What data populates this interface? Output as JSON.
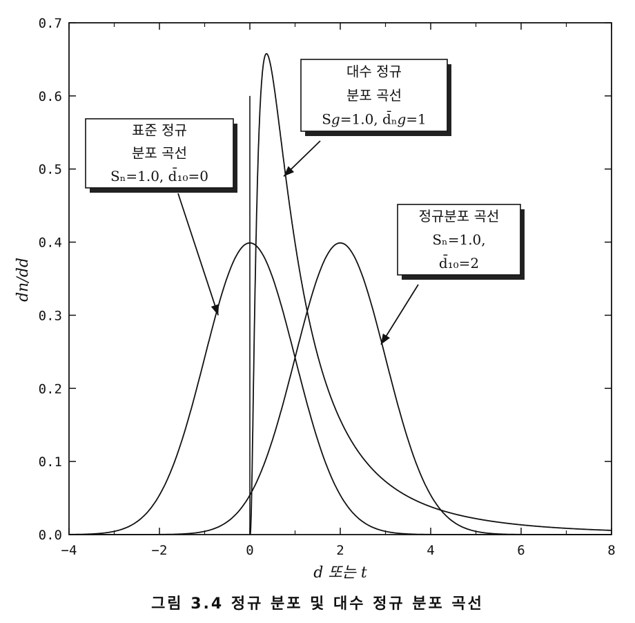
{
  "chart_data": {
    "type": "line",
    "xlabel": "d 또는 t",
    "ylabel": "dn/dd",
    "xlim": [
      -4,
      8
    ],
    "ylim": [
      0,
      0.7
    ],
    "x_ticks": [
      -4,
      -2,
      0,
      2,
      4,
      6,
      8
    ],
    "x_tick_labels": [
      "−4",
      "−2",
      "0",
      "2",
      "4",
      "6",
      "8"
    ],
    "y_ticks": [
      0.0,
      0.1,
      0.2,
      0.3,
      0.4,
      0.5,
      0.6,
      0.7
    ],
    "y_tick_labels": [
      "0.0",
      "0.1",
      "0.2",
      "0.3",
      "0.4",
      "0.5",
      "0.6",
      "0.7"
    ],
    "grid": false,
    "series": [
      {
        "key": "standard",
        "distribution": "normal",
        "mean": 0,
        "sd": 1.0,
        "x": [
          -4,
          -3,
          -2,
          -1,
          0,
          1,
          2,
          3,
          4
        ],
        "y": [
          0.0001,
          0.0044,
          0.054,
          0.242,
          0.399,
          0.242,
          0.054,
          0.0044,
          0.0001
        ]
      },
      {
        "key": "lognormal",
        "distribution": "lognormal",
        "sigma": 1.0,
        "median": 1,
        "x": [
          0.05,
          0.2,
          0.37,
          0.5,
          1,
          2,
          3,
          4,
          6,
          8
        ],
        "y": [
          0.0,
          0.55,
          0.657,
          0.627,
          0.399,
          0.157,
          0.073,
          0.036,
          0.012,
          0.006
        ]
      },
      {
        "key": "shifted",
        "distribution": "normal",
        "mean": 2,
        "sd": 1.0,
        "x": [
          -2,
          -1,
          0,
          1,
          2,
          3,
          4,
          5,
          6
        ],
        "y": [
          0.0001,
          0.0044,
          0.054,
          0.242,
          0.399,
          0.242,
          0.054,
          0.0044,
          0.0001
        ]
      }
    ],
    "annotations": [
      {
        "key": "standard",
        "lines": [
          "표준 정규",
          "분포 곡선",
          "Sₙ=1.0, d̄₁₀=0"
        ],
        "arrow_to": [
          -0.7,
          0.3
        ]
      },
      {
        "key": "lognormal",
        "lines": [
          "대수 정규",
          "분포 곡선",
          "S𝑔=1.0, d̄ₙ𝑔=1"
        ],
        "arrow_to": [
          0.75,
          0.49
        ]
      },
      {
        "key": "shifted",
        "lines": [
          "정규분포 곡선",
          "Sₙ=1.0,",
          "d̄₁₀=2"
        ],
        "arrow_to": [
          2.9,
          0.26
        ]
      }
    ]
  },
  "caption": "그림 3.4  정규 분포 및 대수 정규 분포 곡선"
}
